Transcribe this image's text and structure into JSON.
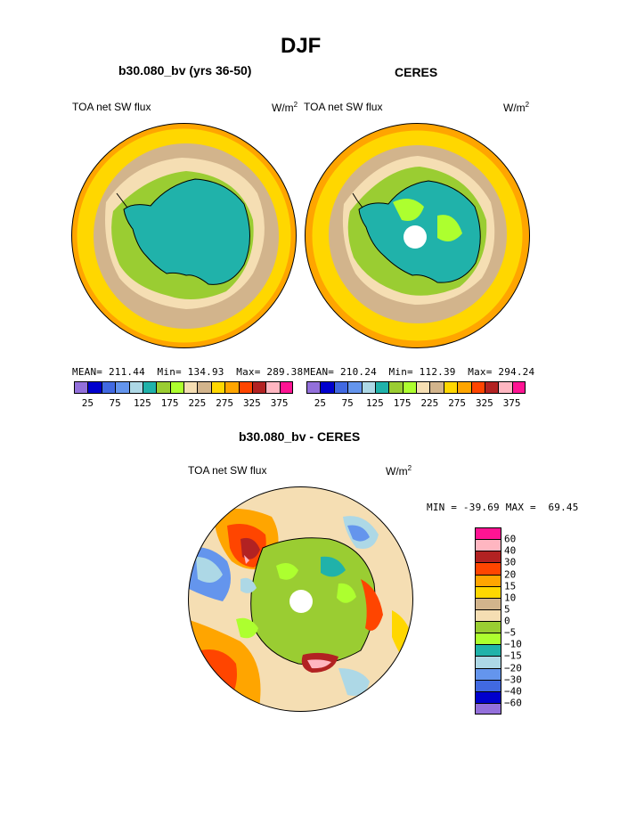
{
  "page_title": "DJF",
  "left_panel": {
    "title": "b30.080_bv (yrs 36-50)",
    "variable": "TOA net SW flux",
    "units_base": "W/m",
    "units_exp": "2",
    "mean_label": "MEAN=",
    "mean_value": "211.44",
    "min_label": "Min=",
    "min_value": "134.93",
    "max_label": "Max=",
    "max_value": "289.38"
  },
  "right_panel": {
    "title": "CERES",
    "variable": "TOA net SW flux",
    "units_base": "W/m",
    "units_exp": "2",
    "mean_label": "MEAN=",
    "mean_value": "210.24",
    "min_label": "Min=",
    "min_value": "112.39",
    "max_label": "Max=",
    "max_value": "294.24"
  },
  "abs_colorbar": {
    "colors": [
      "#9370db",
      "#0000cd",
      "#4169e1",
      "#6495ed",
      "#add8e6",
      "#20b2aa",
      "#9acd32",
      "#adff2f",
      "#f5deb3",
      "#d2b48c",
      "#ffd700",
      "#ffa500",
      "#ff4500",
      "#b22222",
      "#ffb6c1",
      "#ff1493"
    ],
    "tick_labels": [
      "25",
      "75",
      "125",
      "175",
      "225",
      "275",
      "325",
      "375"
    ]
  },
  "diff_panel": {
    "title": "b30.080_bv - CERES",
    "variable": "TOA net SW flux",
    "units_base": "W/m",
    "units_exp": "2",
    "stats": "MIN = -39.69 MAX =  69.45"
  },
  "diff_colorbar": {
    "colors": [
      "#ff1493",
      "#ffb6c1",
      "#b22222",
      "#ff4500",
      "#ffa500",
      "#ffd700",
      "#d2b48c",
      "#f5deb3",
      "#9acd32",
      "#adff2f",
      "#20b2aa",
      "#add8e6",
      "#6495ed",
      "#4169e1",
      "#0000cd",
      "#9370db"
    ],
    "tick_labels": [
      "60",
      "40",
      "30",
      "20",
      "15",
      "10",
      "5",
      "0",
      "−5",
      "−10",
      "−15",
      "−20",
      "−30",
      "−40",
      "−60"
    ]
  },
  "map_colors": {
    "yellow": "#ffd700",
    "orange": "#ffa500",
    "red": "#ff4500",
    "darkred": "#b22222",
    "pink": "#ffb6c1",
    "magenta": "#ff1493",
    "tan": "#d2b48c",
    "wheat": "#f5deb3",
    "green": "#9acd32",
    "lightgreen": "#adff2f",
    "teal": "#20b2aa",
    "lightblue": "#add8e6",
    "cornflower": "#6495ed",
    "royal": "#4169e1"
  }
}
